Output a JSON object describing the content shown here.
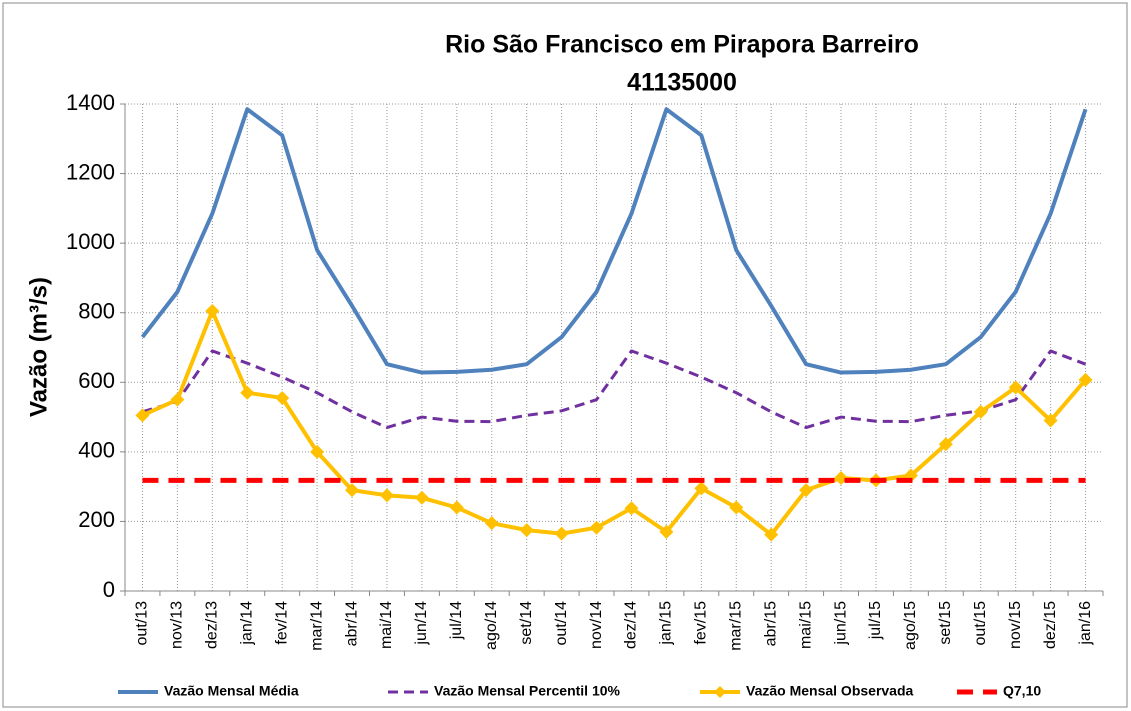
{
  "chart_data": {
    "type": "line",
    "title": "Rio São Francisco em Pirapora Barreiro",
    "subtitle": "41135000",
    "y_label": "Vazão (m³/s)",
    "categories": [
      "out/13",
      "nov/13",
      "dez/13",
      "jan/14",
      "fev/14",
      "mar/14",
      "abr/14",
      "mai/14",
      "jun/14",
      "jul/14",
      "ago/14",
      "set/14",
      "out/14",
      "nov/14",
      "dez/14",
      "jan/15",
      "fev/15",
      "mar/15",
      "abr/15",
      "mai/15",
      "jun/15",
      "jul/15",
      "ago/15",
      "set/15",
      "out/15",
      "nov/15",
      "dez/15",
      "jan/16"
    ],
    "series": [
      {
        "name": "Vazão Mensal Média",
        "color": "#4f81bd",
        "dash": "solid",
        "marker": "none",
        "values": [
          730,
          860,
          1085,
          1385,
          1310,
          980,
          820,
          652,
          628,
          630,
          636,
          652,
          730,
          860,
          1085,
          1385,
          1310,
          980,
          820,
          652,
          628,
          630,
          636,
          652,
          730,
          860,
          1085,
          1385
        ]
      },
      {
        "name": "Vazão Mensal Percentil 10%",
        "color": "#7030a0",
        "dash": "dashed",
        "marker": "none",
        "values": [
          515,
          545,
          690,
          655,
          615,
          570,
          515,
          470,
          500,
          488,
          487,
          505,
          518,
          550,
          690,
          655,
          615,
          570,
          515,
          470,
          500,
          488,
          487,
          505,
          518,
          550,
          690,
          652
        ]
      },
      {
        "name": "Vazão Mensal Observada",
        "color": "#ffc000",
        "dash": "solid",
        "marker": "diamond",
        "values": [
          505,
          550,
          805,
          570,
          555,
          400,
          290,
          275,
          268,
          240,
          195,
          175,
          165,
          182,
          238,
          170,
          295,
          240,
          162,
          290,
          325,
          318,
          332,
          422,
          515,
          585,
          490,
          607
        ]
      },
      {
        "name": "Q7,10",
        "color": "#ff0000",
        "dash": "bold-dashed",
        "marker": "none",
        "values": [
          318,
          318,
          318,
          318,
          318,
          318,
          318,
          318,
          318,
          318,
          318,
          318,
          318,
          318,
          318,
          318,
          318,
          318,
          318,
          318,
          318,
          318,
          318,
          318,
          318,
          318,
          318,
          318
        ]
      }
    ],
    "ylim": [
      0,
      1400
    ],
    "yticks": [
      0,
      200,
      400,
      600,
      800,
      1000,
      1200,
      1400
    ],
    "grid": true,
    "legend": "bottom"
  }
}
